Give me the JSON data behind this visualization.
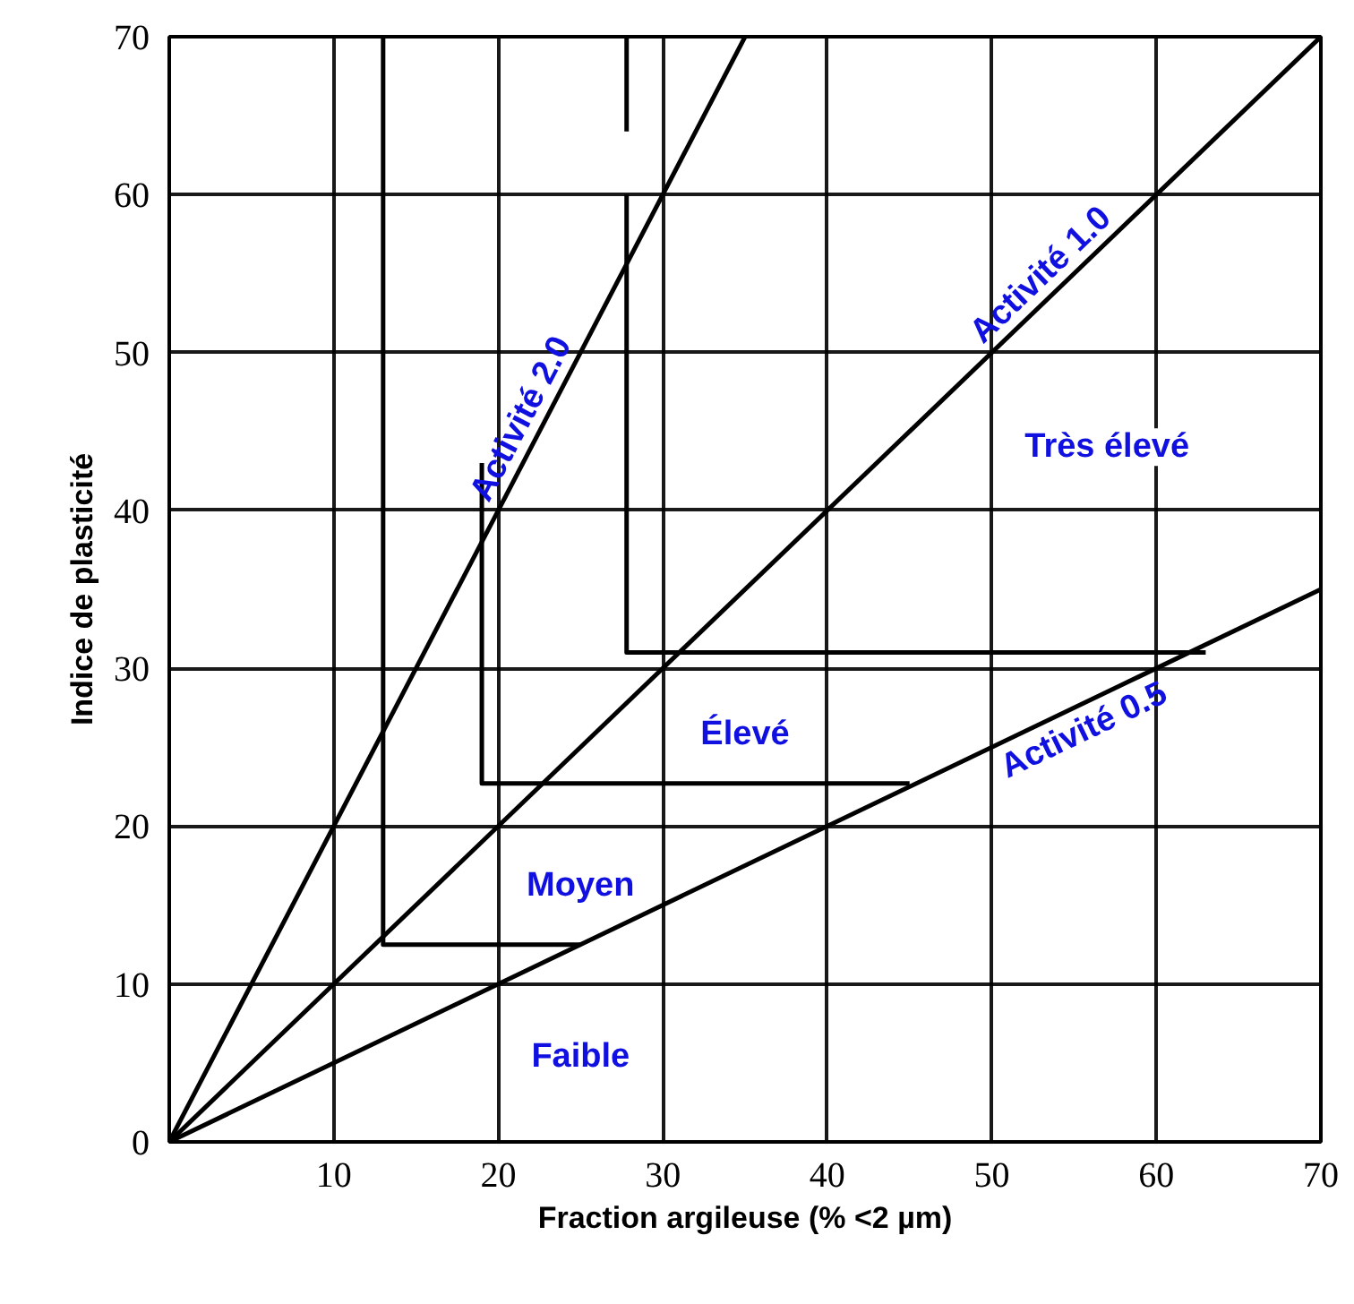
{
  "chart_data": {
    "type": "line",
    "xlabel": "Fraction argileuse (% <2 µm)",
    "ylabel": "Indice de plasticité",
    "xlim": [
      0,
      70
    ],
    "ylim": [
      0,
      70
    ],
    "xticks": [
      {
        "value": 0,
        "label": null
      },
      10,
      20,
      30,
      40,
      50,
      60,
      70
    ],
    "yticks": [
      0,
      10,
      20,
      30,
      40,
      50,
      60,
      70
    ],
    "grid": true,
    "marker": "none",
    "line_style": "solid",
    "series": [
      {
        "name": "Activité 2.0",
        "color": "#000000",
        "x": [
          0,
          35
        ],
        "values": [
          0,
          70
        ]
      },
      {
        "name": "Activité 1.0",
        "color": "#000000",
        "x": [
          0,
          70
        ],
        "values": [
          0,
          70
        ]
      },
      {
        "name": "Activité 0.5",
        "color": "#000000",
        "x": [
          0,
          70
        ],
        "values": [
          0,
          35
        ]
      },
      {
        "color": "#000000",
        "x": [
          13,
          13,
          25
        ],
        "values": [
          70,
          12.5,
          12.5
        ]
      },
      {
        "color": "#000000",
        "x": [
          19,
          19,
          45
        ],
        "values": [
          43,
          22.7,
          22.7
        ]
      },
      {
        "color": "#000000",
        "x": [
          27.8,
          27.8,
          63
        ],
        "values": [
          60,
          31,
          31
        ]
      },
      {
        "color": "#000000",
        "x": [
          27.8,
          27.8
        ],
        "values": [
          64,
          70
        ]
      }
    ],
    "annotations": [
      "Faible",
      "Moyen",
      "Élevé",
      "Très élevé"
    ]
  }
}
